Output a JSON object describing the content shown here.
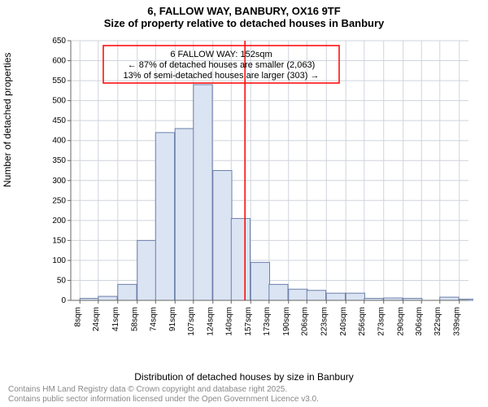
{
  "title_line1": "6, FALLOW WAY, BANBURY, OX16 9TF",
  "title_line2": "Size of property relative to detached houses in Banbury",
  "ylabel": "Number of detached properties",
  "xlabel": "Distribution of detached houses by size in Banbury",
  "footer_line1": "Contains HM Land Registry data © Crown copyright and database right 2025.",
  "footer_line2": "Contains public sector information licensed under the Open Government Licence v3.0.",
  "annotation": {
    "line1": "6 FALLOW WAY: 152sqm",
    "line2": "← 87% of detached houses are smaller (2,063)",
    "line3": "13% of semi-detached houses are larger (303) →",
    "border_color": "#ff0000",
    "text_color": "#000000",
    "fontsize": 11
  },
  "chart": {
    "type": "histogram",
    "background_color": "#ffffff",
    "grid_color": "#cfd4dc",
    "bar_fill": "#dbe4f3",
    "bar_stroke": "#6c7faa",
    "axis_color": "#666666",
    "tick_color": "#666666",
    "tick_fontsize": 10,
    "marker_line_color": "#ff0000",
    "marker_line_x": 152,
    "xlim": [
      0,
      347
    ],
    "ylim": [
      0,
      650
    ],
    "ytick_step": 50,
    "x_ticks": [
      8,
      24,
      41,
      58,
      74,
      91,
      107,
      124,
      140,
      157,
      173,
      190,
      206,
      223,
      240,
      256,
      273,
      290,
      306,
      322,
      339
    ],
    "x_tick_suffix": "sqm",
    "bins": [
      {
        "x_start": 8,
        "count": 5
      },
      {
        "x_start": 24,
        "count": 10
      },
      {
        "x_start": 41,
        "count": 40
      },
      {
        "x_start": 58,
        "count": 150
      },
      {
        "x_start": 74,
        "count": 420
      },
      {
        "x_start": 91,
        "count": 430
      },
      {
        "x_start": 107,
        "count": 540
      },
      {
        "x_start": 124,
        "count": 325
      },
      {
        "x_start": 140,
        "count": 205
      },
      {
        "x_start": 157,
        "count": 95
      },
      {
        "x_start": 173,
        "count": 40
      },
      {
        "x_start": 190,
        "count": 28
      },
      {
        "x_start": 206,
        "count": 25
      },
      {
        "x_start": 223,
        "count": 18
      },
      {
        "x_start": 240,
        "count": 18
      },
      {
        "x_start": 256,
        "count": 5
      },
      {
        "x_start": 273,
        "count": 6
      },
      {
        "x_start": 290,
        "count": 5
      },
      {
        "x_start": 306,
        "count": 0
      },
      {
        "x_start": 322,
        "count": 8
      },
      {
        "x_start": 339,
        "count": 3
      }
    ],
    "bin_width": 16.5
  }
}
